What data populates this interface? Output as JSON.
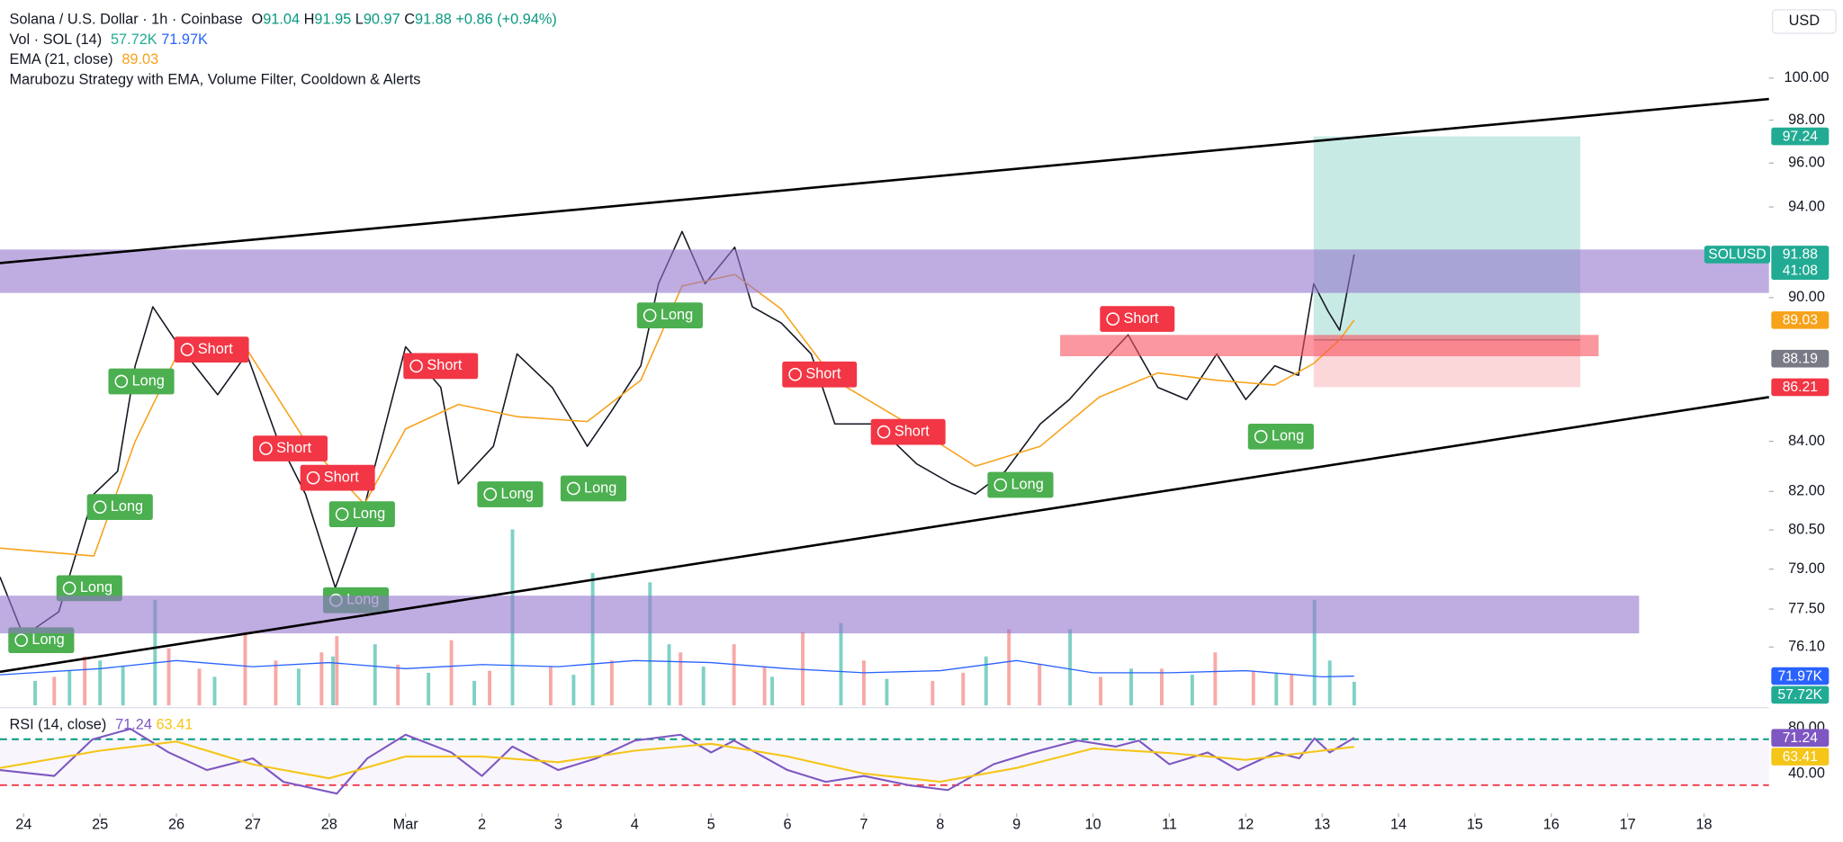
{
  "chart_data": {
    "type": "line",
    "yscale": "log",
    "currency": "USD",
    "header": {
      "symbol": "Solana / U.S. Dollar · 1h · Coinbase",
      "ohlc": [
        {
          "key": "O",
          "value": 91.04
        },
        {
          "key": "H",
          "value": 91.95
        },
        {
          "key": "L",
          "value": 90.97
        },
        {
          "key": "C",
          "value": 91.88
        }
      ],
      "change": {
        "value": 0.86,
        "label": "+0.86"
      },
      "change_pct": {
        "value": 0.94,
        "label": "(+0.94%)"
      }
    },
    "indicator": "Marubozu Strategy with EMA, Volume Filter, Cooldown & Alerts",
    "countdown": "41:08",
    "xlim": [
      -0.31,
      22.85
    ],
    "xticks": [
      {
        "value": 0,
        "label": "24"
      },
      {
        "value": 1,
        "label": "25"
      },
      {
        "value": 2,
        "label": "26"
      },
      {
        "value": 3,
        "label": "27"
      },
      {
        "value": 4,
        "label": "28"
      },
      {
        "value": 5,
        "label": "Mar"
      },
      {
        "value": 6,
        "label": "2"
      },
      {
        "value": 7,
        "label": "3"
      },
      {
        "value": 8,
        "label": "4"
      },
      {
        "value": 9,
        "label": "5"
      },
      {
        "value": 10,
        "label": "6"
      },
      {
        "value": 11,
        "label": "7"
      },
      {
        "value": 12,
        "label": "8"
      },
      {
        "value": 13,
        "label": "9"
      },
      {
        "value": 14,
        "label": "10"
      },
      {
        "value": 15,
        "label": "11"
      },
      {
        "value": 16,
        "label": "12"
      },
      {
        "value": 17,
        "label": "13"
      },
      {
        "value": 18,
        "label": "14"
      },
      {
        "value": 19,
        "label": "15"
      },
      {
        "value": 20,
        "label": "16"
      },
      {
        "value": 21,
        "label": "17"
      },
      {
        "value": 22,
        "label": "18"
      }
    ],
    "ylim": [
      74,
      103.8
    ],
    "yticks": [
      {
        "value": 100,
        "label": "100.00"
      },
      {
        "value": 98,
        "label": "98.00"
      },
      {
        "value": 96,
        "label": "96.00"
      },
      {
        "value": 94,
        "label": "94.00"
      },
      {
        "value": 90,
        "label": "90.00"
      },
      {
        "value": 84,
        "label": "84.00"
      },
      {
        "value": 82,
        "label": "82.00"
      },
      {
        "value": 80.5,
        "label": "80.50"
      },
      {
        "value": 79,
        "label": "79.00"
      },
      {
        "value": 77.5,
        "label": "77.50"
      },
      {
        "value": 76.1,
        "label": "76.10"
      }
    ],
    "series": [
      {
        "name": "SOLUSD",
        "color": "#131722",
        "badge_color": "#22ab94",
        "last": 91.88,
        "x": [
          -0.31,
          0,
          0.46,
          0.92,
          1.23,
          1.46,
          1.69,
          2,
          2.54,
          2.92,
          3.31,
          3.69,
          4.08,
          4.46,
          5,
          5.46,
          5.69,
          6.15,
          6.46,
          6.92,
          7.38,
          7.69,
          8.08,
          8.31,
          8.62,
          8.92,
          9.31,
          9.54,
          9.92,
          10.31,
          10.62,
          11.15,
          11.69,
          12.15,
          12.46,
          12.85,
          13.31,
          13.69,
          14.08,
          14.46,
          14.85,
          15.23,
          15.62,
          16,
          16.38,
          16.69,
          16.89,
          17.08,
          17.23,
          17.42
        ],
        "values": [
          78.7,
          76.5,
          77.4,
          81.9,
          82.8,
          87.1,
          89.6,
          88.1,
          85.9,
          87.6,
          84.2,
          81.9,
          78.3,
          81.4,
          87.9,
          86.2,
          82.3,
          83.8,
          87.6,
          86.2,
          83.8,
          85.2,
          87.1,
          90.6,
          92.9,
          90.6,
          92.2,
          89.6,
          88.9,
          87.6,
          84.7,
          84.7,
          83.1,
          82.3,
          81.9,
          82.8,
          84.7,
          85.7,
          87.1,
          88.4,
          86.2,
          85.7,
          87.6,
          85.7,
          87.1,
          86.7,
          90.6,
          89.4,
          88.6,
          91.88
        ]
      },
      {
        "name": "EMA (21, close)",
        "color": "#f7a21b",
        "last": 89.03,
        "x": [
          -0.31,
          0.92,
          1.46,
          2,
          2.92,
          3.69,
          4.46,
          5,
          5.69,
          6.46,
          7.38,
          8.08,
          8.62,
          9.31,
          9.92,
          10.62,
          11.69,
          12.46,
          13.31,
          14.08,
          14.85,
          15.62,
          16.38,
          16.89,
          17.23,
          17.42
        ],
        "values": [
          79.8,
          79.5,
          84,
          87.5,
          87.8,
          84,
          81.5,
          84.5,
          85.5,
          85,
          84.8,
          86.5,
          90.5,
          91,
          89.5,
          86.5,
          84.5,
          83,
          83.8,
          85.8,
          86.8,
          86.5,
          86.3,
          87.2,
          88.2,
          89.03
        ]
      }
    ],
    "trend_lines": [
      {
        "color": "#000000",
        "x": [
          -0.31,
          22.85
        ],
        "y": [
          91.5,
          99.0
        ]
      },
      {
        "color": "#000000",
        "x": [
          -0.31,
          22.85
        ],
        "y": [
          75.2,
          85.8
        ]
      }
    ],
    "zones": [
      {
        "color": "#9575cd",
        "x0": -0.31,
        "x1": 22.85,
        "y0": 90.2,
        "y1": 92.1
      },
      {
        "color": "#9575cd",
        "x0": -0.31,
        "x1": 21.15,
        "y0": 76.6,
        "y1": 78.0
      },
      {
        "color": "#f7525f",
        "x0": 13.57,
        "x1": 20.62,
        "y0": 87.5,
        "y1": 88.4
      }
    ],
    "position": {
      "x0": 16.89,
      "x1": 20.38,
      "entry": 88.19,
      "target": 97.24,
      "stop": 86.21,
      "target_color": "#22ab94",
      "entry_color": "#787b86",
      "stop_color": "#f23645"
    },
    "signals": [
      {
        "label": "Long",
        "x": 0.23,
        "y": 76.35
      },
      {
        "label": "Long",
        "x": 0.86,
        "y": 78.28
      },
      {
        "label": "Long",
        "x": 1.26,
        "y": 81.39
      },
      {
        "label": "Long",
        "x": 1.54,
        "y": 86.45
      },
      {
        "label": "Long",
        "x": 4.43,
        "y": 81.11
      },
      {
        "label": "Long",
        "x": 4.35,
        "y": 77.83
      },
      {
        "label": "Long",
        "x": 6.37,
        "y": 81.89
      },
      {
        "label": "Long",
        "x": 7.46,
        "y": 82.12
      },
      {
        "label": "Long",
        "x": 8.46,
        "y": 89.23
      },
      {
        "label": "Long",
        "x": 13.05,
        "y": 82.26
      },
      {
        "label": "Long",
        "x": 16.46,
        "y": 84.19
      },
      {
        "label": "Short",
        "x": 2.46,
        "y": 87.78
      },
      {
        "label": "Short",
        "x": 3.49,
        "y": 83.71
      },
      {
        "label": "Short",
        "x": 4.11,
        "y": 82.54
      },
      {
        "label": "Short",
        "x": 5.46,
        "y": 87.09
      },
      {
        "label": "Short",
        "x": 10.42,
        "y": 86.74
      },
      {
        "label": "Short",
        "x": 11.58,
        "y": 84.38
      },
      {
        "label": "Short",
        "x": 14.58,
        "y": 89.08
      }
    ],
    "signal_colors": {
      "Long": "#4caf50",
      "Short": "#f23645"
    },
    "volume": {
      "name": "Vol · SOL (14)",
      "ylim": [
        0,
        600000
      ],
      "current": {
        "value": 57720,
        "label": "57.72K",
        "color": "#22ab94"
      },
      "ma": {
        "value": 71970,
        "label": "71.97K",
        "color": "#2962ff"
      },
      "up": {
        "color": "#7fd1c5",
        "x": [
          0.15,
          0.6,
          1.0,
          1.3,
          1.72,
          2.5,
          3.6,
          4.05,
          4.6,
          5.3,
          5.9,
          6.4,
          7.2,
          7.45,
          8.2,
          8.45,
          8.9,
          9.8,
          10.7,
          11.3,
          12.6,
          13.7,
          14.5,
          15.3,
          16.4,
          16.9,
          17.1,
          17.42
        ],
        "values": [
          60000,
          85000,
          110000,
          95000,
          259000,
          70000,
          90000,
          120000,
          150000,
          80000,
          60000,
          432000,
          75000,
          325000,
          302000,
          150000,
          95000,
          70000,
          202000,
          65000,
          120000,
          187000,
          90000,
          75000,
          80000,
          259000,
          110000,
          57720
        ]
      },
      "down": {
        "color": "#f7a9a7",
        "x": [
          0.4,
          0.8,
          1.9,
          2.3,
          2.9,
          3.3,
          3.9,
          4.1,
          4.9,
          5.6,
          6.1,
          6.9,
          7.7,
          8.6,
          9.3,
          9.7,
          10.2,
          11.0,
          11.9,
          12.3,
          12.9,
          13.3,
          14.1,
          14.9,
          15.6,
          16.1,
          16.6
        ],
        "values": [
          70000,
          120000,
          140000,
          90000,
          180000,
          110000,
          130000,
          170000,
          100000,
          160000,
          85000,
          95000,
          110000,
          130000,
          150000,
          95000,
          180000,
          110000,
          60000,
          80000,
          187000,
          100000,
          70000,
          90000,
          130000,
          85000,
          75000
        ]
      },
      "ma_line": {
        "color": "#2962ff",
        "x": [
          -0.31,
          1,
          2,
          3,
          4,
          5,
          6,
          7,
          8,
          9,
          10,
          11,
          12,
          13,
          14,
          15,
          16,
          17,
          17.42
        ],
        "values": [
          75000,
          90000,
          110000,
          95000,
          105000,
          90000,
          100000,
          95000,
          110000,
          105000,
          90000,
          80000,
          85000,
          110000,
          80000,
          80000,
          85000,
          70000,
          71970
        ]
      }
    },
    "rsi": {
      "name": "RSI (14, close)",
      "ylim": [
        7.4,
        94.4
      ],
      "yticks": [
        {
          "value": 80,
          "label": "80.00"
        },
        {
          "value": 40,
          "label": "40.00"
        }
      ],
      "levels": [
        {
          "value": 70,
          "color": "#089981"
        },
        {
          "value": 30,
          "color": "#f23645"
        }
      ],
      "series": [
        {
          "color": "#7e57c2",
          "last": 71.24,
          "x": [
            -0.31,
            0.4,
            0.9,
            1.4,
            1.9,
            2.4,
            3,
            3.4,
            4.1,
            4.5,
            5,
            5.6,
            6,
            6.4,
            7,
            7.5,
            8,
            8.6,
            9,
            9.3,
            10,
            10.5,
            11,
            11.6,
            12.1,
            12.7,
            13.2,
            13.8,
            14.3,
            14.6,
            15,
            15.5,
            15.9,
            16.4,
            16.7,
            16.9,
            17.1,
            17.42
          ],
          "values": [
            43.1,
            38,
            69.8,
            79.0,
            58.5,
            43.1,
            53.4,
            32.9,
            22.6,
            53.4,
            73.9,
            58.5,
            38,
            63.6,
            43.1,
            53.4,
            68.8,
            73.9,
            58.5,
            68.8,
            43.1,
            32.9,
            38,
            29.8,
            25.7,
            48.2,
            58.5,
            68.8,
            63.6,
            68.8,
            48.2,
            58.5,
            43.1,
            58.5,
            53.4,
            70.8,
            58.5,
            71.24
          ]
        },
        {
          "color": "#f5c518",
          "last": 63.41,
          "x": [
            -0.31,
            1,
            2,
            3,
            4,
            5,
            6,
            7,
            8,
            9,
            10,
            11,
            12,
            13,
            14,
            15,
            16,
            17,
            17.42
          ],
          "values": [
            45,
            60,
            68,
            48,
            36,
            55,
            55,
            50,
            60,
            66,
            55,
            40,
            33,
            45,
            62,
            58,
            52,
            60,
            63.41
          ]
        }
      ]
    }
  }
}
